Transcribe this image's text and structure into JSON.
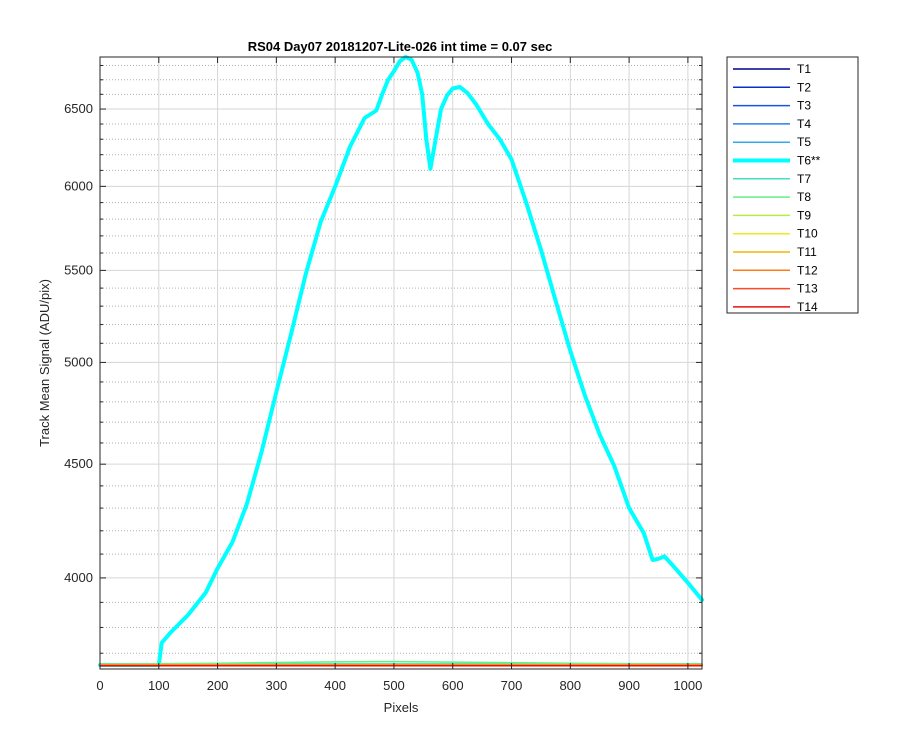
{
  "chart_data": {
    "type": "line",
    "title": "RS04 Day07 20181207-Lite-026 int time = 0.07 sec",
    "xlabel": "Pixels",
    "ylabel": "Track Mean Signal (ADU/pix)",
    "xlim": [
      0,
      1024
    ],
    "ylim": [
      3640,
      6860
    ],
    "y_scale": "log",
    "grid": true,
    "minor_grid": true,
    "legend_position": "outside-right",
    "x_ticks": [
      0,
      100,
      200,
      300,
      400,
      500,
      600,
      700,
      800,
      900,
      1000
    ],
    "y_ticks": [
      4000,
      4500,
      5000,
      5500,
      6000,
      6500
    ],
    "y_minor_ticks": [
      3700,
      3800,
      3900,
      4100,
      4200,
      4300,
      4400,
      4600,
      4700,
      4800,
      4900,
      5100,
      5200,
      5300,
      5400,
      5600,
      5700,
      5800,
      5900,
      6100,
      6200,
      6300,
      6400,
      6600,
      6700,
      6800
    ],
    "series": [
      {
        "name": "T1",
        "color": "#00008b",
        "highlight": false,
        "x": [
          0,
          1024
        ],
        "y": [
          3655,
          3655
        ]
      },
      {
        "name": "T2",
        "color": "#0a2fc8",
        "highlight": false,
        "x": [
          0,
          1024
        ],
        "y": [
          3655,
          3655
        ]
      },
      {
        "name": "T3",
        "color": "#1a55e0",
        "highlight": false,
        "x": [
          0,
          1024
        ],
        "y": [
          3655,
          3655
        ]
      },
      {
        "name": "T4",
        "color": "#2a7fe6",
        "highlight": false,
        "x": [
          0,
          1024
        ],
        "y": [
          3655,
          3655
        ]
      },
      {
        "name": "T5",
        "color": "#33aaf0",
        "highlight": false,
        "x": [
          0,
          1024
        ],
        "y": [
          3655,
          3655
        ]
      },
      {
        "name": "T6**",
        "color": "#00ffff",
        "highlight": true,
        "x": [
          0,
          100,
          105,
          120,
          150,
          180,
          200,
          225,
          250,
          275,
          300,
          325,
          350,
          375,
          400,
          425,
          450,
          470,
          480,
          490,
          500,
          510,
          520,
          530,
          540,
          548,
          555,
          562,
          570,
          580,
          590,
          600,
          612,
          625,
          640,
          660,
          680,
          700,
          725,
          750,
          775,
          800,
          825,
          850,
          875,
          900,
          925,
          940,
          950,
          960,
          975,
          1000,
          1024
        ],
        "y": [
          3655,
          3655,
          3740,
          3780,
          3850,
          3940,
          4040,
          4150,
          4320,
          4560,
          4850,
          5150,
          5480,
          5780,
          6000,
          6250,
          6440,
          6490,
          6600,
          6700,
          6760,
          6830,
          6860,
          6840,
          6750,
          6600,
          6300,
          6110,
          6280,
          6500,
          6590,
          6640,
          6650,
          6610,
          6530,
          6400,
          6300,
          6170,
          5900,
          5620,
          5330,
          5060,
          4830,
          4640,
          4490,
          4300,
          4190,
          4075,
          4080,
          4090,
          4050,
          3980,
          3910
        ]
      },
      {
        "name": "T7",
        "color": "#40e0c0",
        "highlight": false,
        "x": [
          0,
          1024
        ],
        "y": [
          3660,
          3660
        ]
      },
      {
        "name": "T8",
        "color": "#66ee88",
        "highlight": false,
        "x": [
          0,
          200,
          400,
          500,
          600,
          800,
          1024
        ],
        "y": [
          3658,
          3662,
          3667,
          3668,
          3666,
          3662,
          3658
        ]
      },
      {
        "name": "T9",
        "color": "#b4ee44",
        "highlight": false,
        "x": [
          0,
          1024
        ],
        "y": [
          3657,
          3657
        ]
      },
      {
        "name": "T10",
        "color": "#f4e81c",
        "highlight": false,
        "x": [
          0,
          1024
        ],
        "y": [
          3656,
          3656
        ]
      },
      {
        "name": "T11",
        "color": "#f4b800",
        "highlight": false,
        "x": [
          0,
          1024
        ],
        "y": [
          3655,
          3655
        ]
      },
      {
        "name": "T12",
        "color": "#ff7a1a",
        "highlight": false,
        "x": [
          0,
          1024
        ],
        "y": [
          3654,
          3654
        ]
      },
      {
        "name": "T13",
        "color": "#ff4a20",
        "highlight": false,
        "x": [
          0,
          1024
        ],
        "y": [
          3654,
          3654
        ]
      },
      {
        "name": "T14",
        "color": "#e81010",
        "highlight": false,
        "x": [
          0,
          1024
        ],
        "y": [
          3652,
          3652
        ]
      }
    ]
  }
}
